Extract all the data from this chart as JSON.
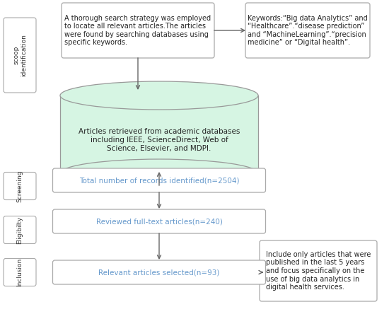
{
  "bg_color": "#ffffff",
  "box_border_color": "#aaaaaa",
  "box_fill_color": "#ffffff",
  "teal_text_color": "#6699cc",
  "black_text_color": "#222222",
  "arrow_color": "#666666",
  "cylinder_fill": "#d6f5e3",
  "cylinder_edge": "#999999",
  "side_label_border": "#aaaaaa",
  "side_labels": [
    "scoop\nidentification",
    "Screening",
    "Eligibilty",
    "Inclusion"
  ],
  "box1_text": "A thorough search strategy was employed\nto locate all relevant articles.The articles\nwere found by searching databases using\nspecific keywords.",
  "box_keywords_text": "Keywords:“Big data Analytics” and\n“Healthcare”.“disease prediction”\nand “MachineLearning”.“precision\nmedicine” or “Digital health”.",
  "cylinder_text": "Articles retrieved from academic databases\nincluding IEEE, ScienceDirect, Web of\nScience, Elsevier, and MDPI.",
  "box_screening_text": "Total number of records identified(n=2504)",
  "box_eligibility_text": "Reviewed full-text articles(n=240)",
  "box_inclusion_text": "Relevant articles selected(n=93)",
  "box_side_note_text": "Include only articles that were\npublished in the last 5 years\nand focus specifically on the\nuse of big data analytics in\ndigital health services."
}
